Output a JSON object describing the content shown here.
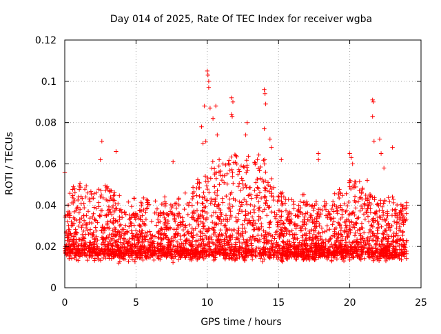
{
  "chart_data": {
    "type": "scatter",
    "title": "Day 014 of 2025, Rate Of TEC Index for receiver wgba",
    "xlabel": "GPS time / hours",
    "ylabel": "ROTI / TECUs",
    "xlim": [
      0,
      25
    ],
    "ylim": [
      0,
      0.12
    ],
    "xticks": [
      0,
      5,
      10,
      15,
      20,
      25
    ],
    "xtick_labels": [
      "0",
      "5",
      "10",
      "15",
      "20",
      "25"
    ],
    "yticks": [
      0,
      0.02,
      0.04,
      0.06,
      0.08,
      0.1,
      0.12
    ],
    "ytick_labels": [
      "0",
      "0.02",
      "0.04",
      "0.06",
      "0.08",
      "0.1",
      "0.12"
    ],
    "grid": true,
    "marker": "plus",
    "color": "#ff0000",
    "x_data_range": [
      0,
      24
    ],
    "typical_band": [
      0.008,
      0.03
    ],
    "series": [
      {
        "name": "ROTI",
        "outliers": [
          [
            10.0,
            0.105
          ],
          [
            10.05,
            0.103
          ],
          [
            10.1,
            0.1
          ],
          [
            10.1,
            0.097
          ],
          [
            9.8,
            0.088
          ],
          [
            10.2,
            0.087
          ],
          [
            10.6,
            0.088
          ],
          [
            10.4,
            0.082
          ],
          [
            9.6,
            0.078
          ],
          [
            9.7,
            0.07
          ],
          [
            9.9,
            0.071
          ],
          [
            10.7,
            0.074
          ],
          [
            11.7,
            0.092
          ],
          [
            11.8,
            0.09
          ],
          [
            11.7,
            0.084
          ],
          [
            11.75,
            0.083
          ],
          [
            12.8,
            0.08
          ],
          [
            12.7,
            0.074
          ],
          [
            14.0,
            0.096
          ],
          [
            14.05,
            0.094
          ],
          [
            14.1,
            0.089
          ],
          [
            14.0,
            0.077
          ],
          [
            14.4,
            0.072
          ],
          [
            14.5,
            0.068
          ],
          [
            2.6,
            0.071
          ],
          [
            2.5,
            0.062
          ],
          [
            3.6,
            0.066
          ],
          [
            0.0,
            0.056
          ],
          [
            17.8,
            0.065
          ],
          [
            17.8,
            0.062
          ],
          [
            20.0,
            0.065
          ],
          [
            20.1,
            0.063
          ],
          [
            20.2,
            0.06
          ],
          [
            21.6,
            0.091
          ],
          [
            21.65,
            0.09
          ],
          [
            21.6,
            0.083
          ],
          [
            21.7,
            0.071
          ],
          [
            22.1,
            0.072
          ],
          [
            22.2,
            0.065
          ],
          [
            23.0,
            0.068
          ],
          [
            7.6,
            0.061
          ],
          [
            12.0,
            0.064
          ],
          [
            15.2,
            0.062
          ],
          [
            22.4,
            0.058
          ]
        ]
      }
    ]
  }
}
